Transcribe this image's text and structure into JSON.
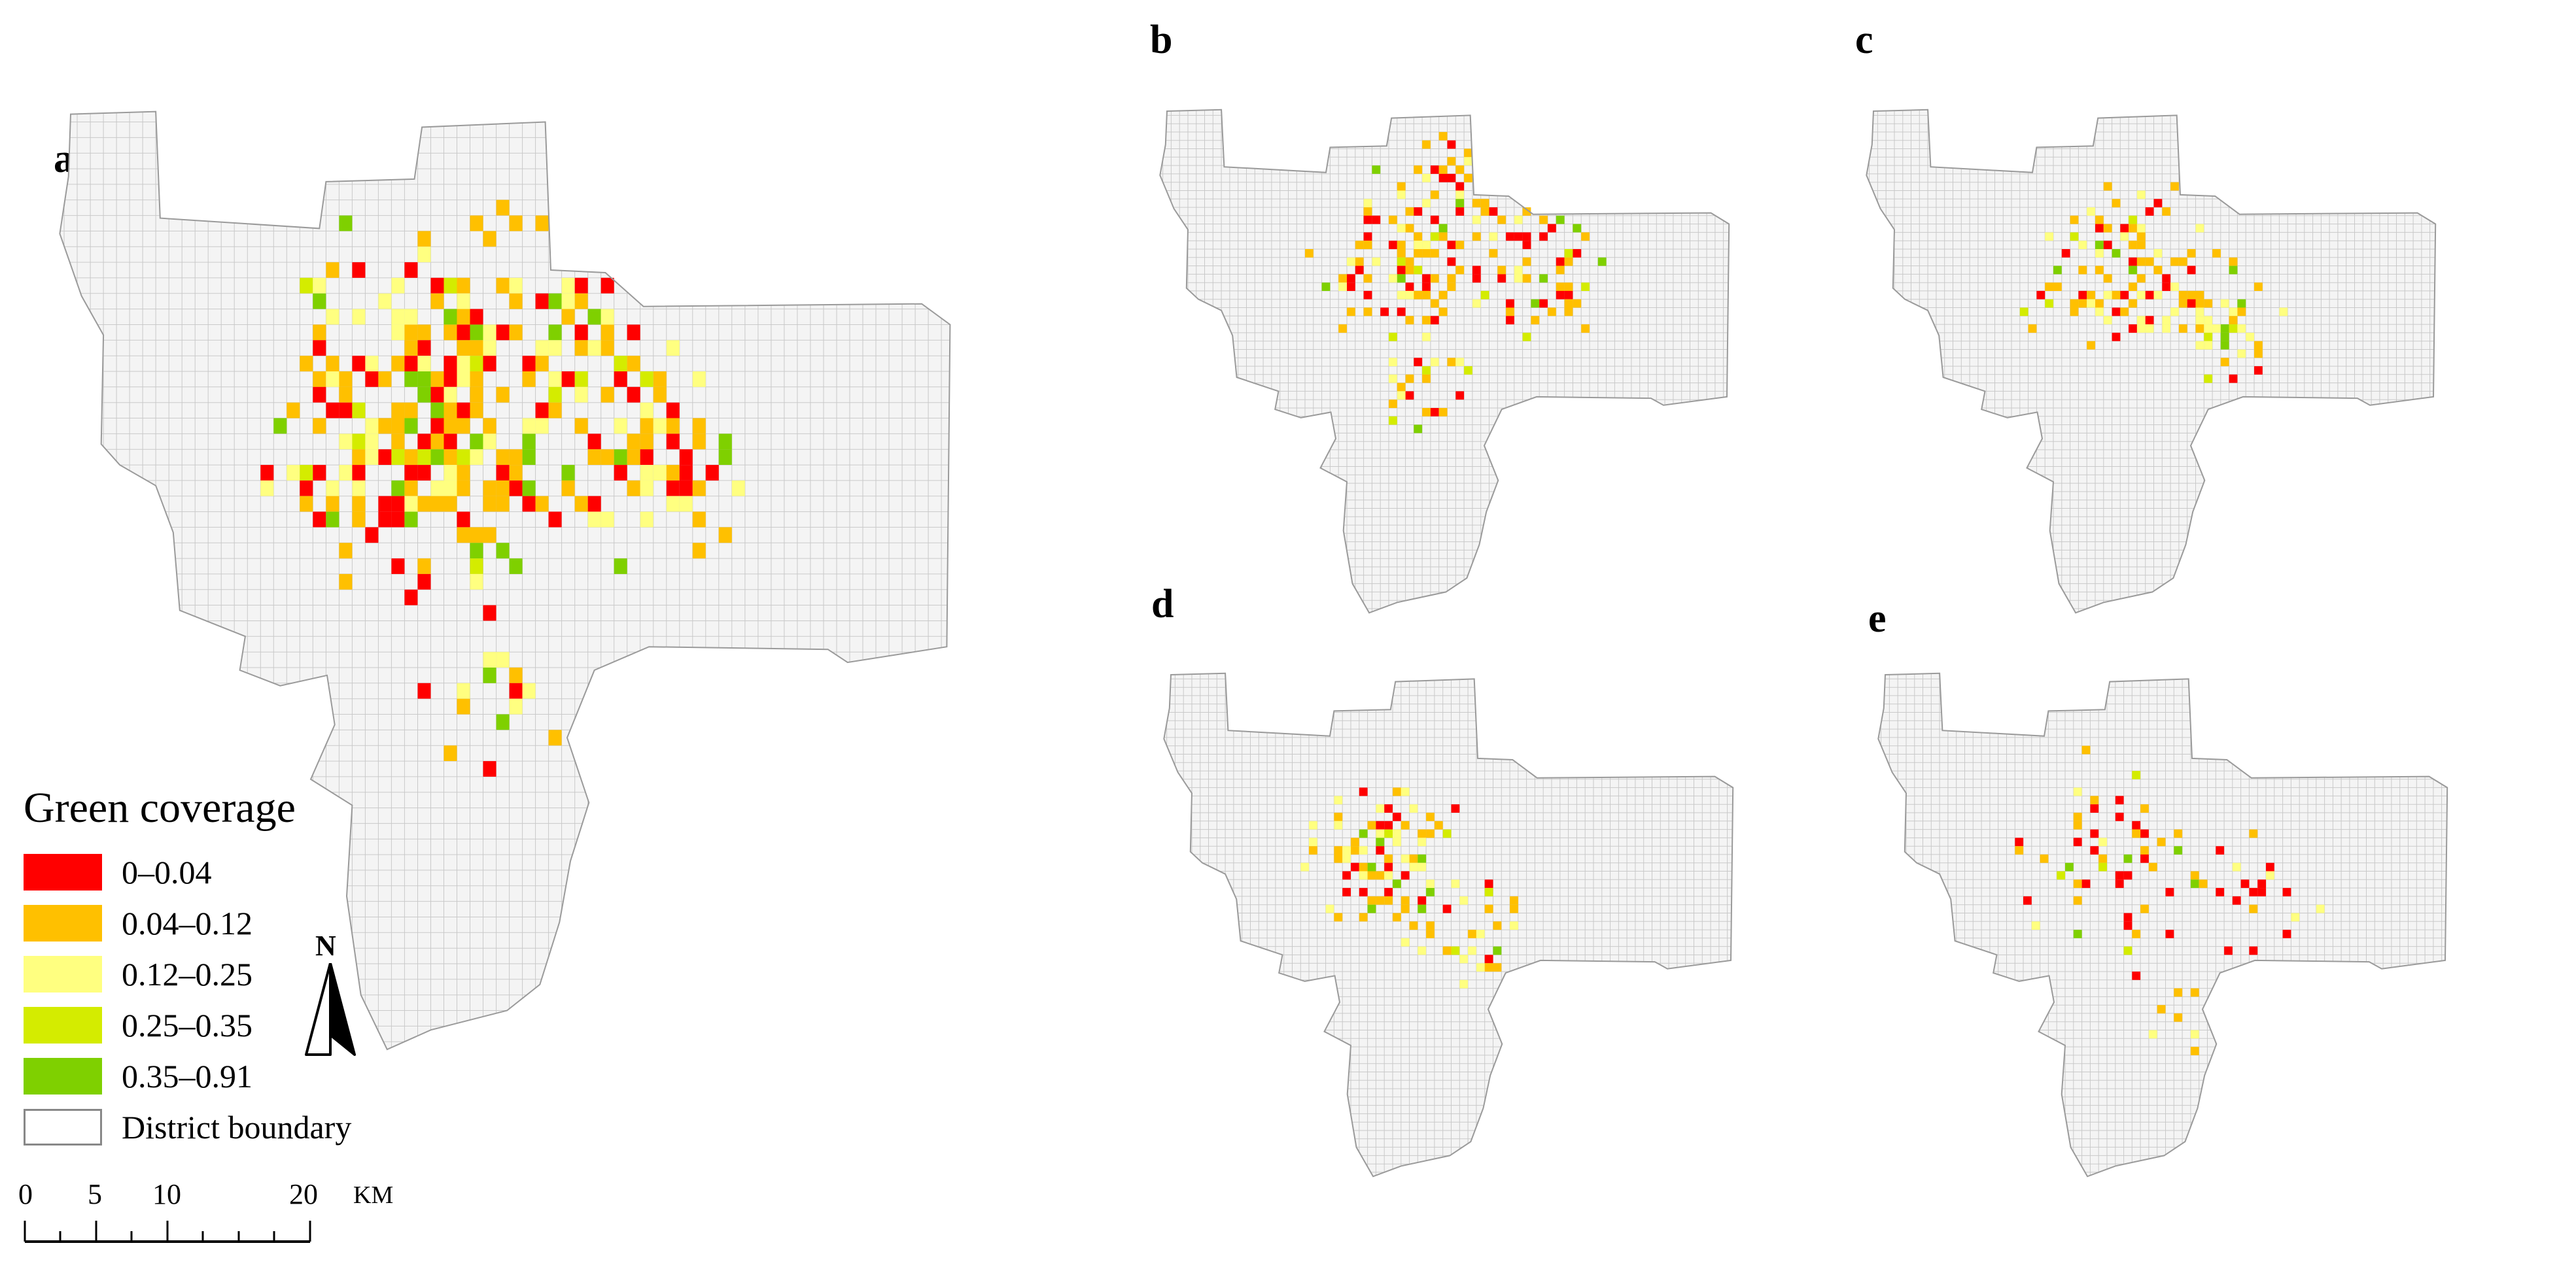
{
  "panels": [
    {
      "letter": "a"
    },
    {
      "letter": "b"
    },
    {
      "letter": "c"
    },
    {
      "letter": "d"
    },
    {
      "letter": "e"
    }
  ],
  "legend": {
    "title": "Green coverage",
    "classes": [
      {
        "label": "0–0.04",
        "color": "#ff0000"
      },
      {
        "label": "0.04–0.12",
        "color": "#ffc000"
      },
      {
        "label": "0.12–0.25",
        "color": "#ffff80"
      },
      {
        "label": "0.25–0.35",
        "color": "#d4ec00"
      },
      {
        "label": "0.35–0.91",
        "color": "#7fd000"
      }
    ],
    "boundary_label": "District boundary",
    "boundary_fill": "#ffffff",
    "boundary_stroke": "#888888"
  },
  "north": {
    "label": "N"
  },
  "scale": {
    "ticks": [
      "0",
      "5",
      "10",
      "20"
    ],
    "unit": "KM"
  },
  "grid": {
    "fill": "#f4f4f4",
    "line": "#c9c9c9",
    "outline": "#9a9a9a"
  }
}
